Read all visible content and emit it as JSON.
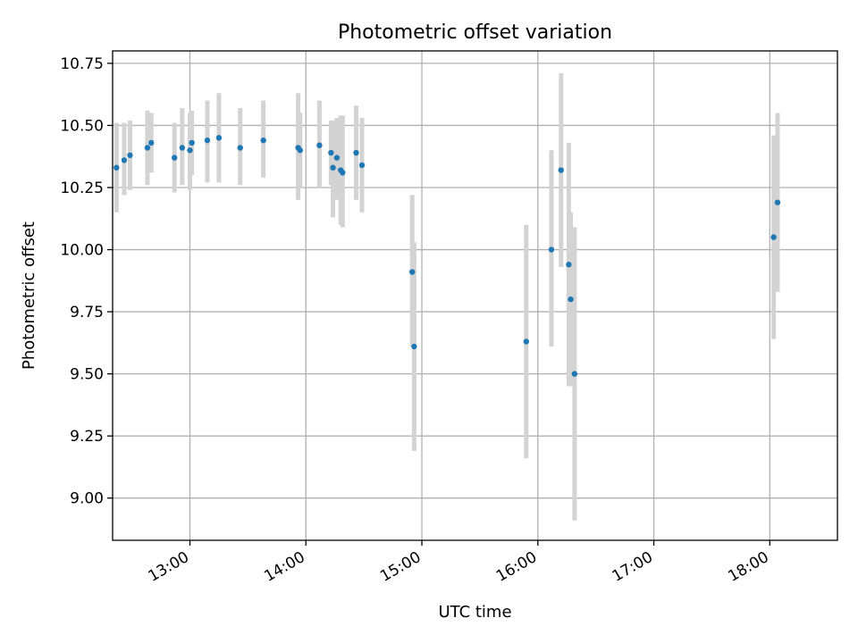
{
  "chart_data": {
    "type": "scatter",
    "title": "Photometric offset variation",
    "xlabel": "UTC time",
    "ylabel": "Photometric offset",
    "xlim": [
      "12:20",
      "18:35"
    ],
    "ylim": [
      8.83,
      10.8
    ],
    "x_ticks": [
      "13:00",
      "14:00",
      "15:00",
      "16:00",
      "17:00",
      "18:00"
    ],
    "y_ticks": [
      "9.00",
      "9.25",
      "9.50",
      "9.75",
      "10.00",
      "10.25",
      "10.50",
      "10.75"
    ],
    "grid": true,
    "colors": {
      "point": "#1f77b4",
      "errorbar": "#d3d3d3",
      "grid": "#b0b0b0"
    },
    "points": [
      {
        "x": "12:22",
        "y": 10.33,
        "ylow": 10.15,
        "yhigh": 10.51
      },
      {
        "x": "12:26",
        "y": 10.36,
        "ylow": 10.22,
        "yhigh": 10.51
      },
      {
        "x": "12:29",
        "y": 10.38,
        "ylow": 10.24,
        "yhigh": 10.52
      },
      {
        "x": "12:38",
        "y": 10.41,
        "ylow": 10.26,
        "yhigh": 10.56
      },
      {
        "x": "12:40",
        "y": 10.43,
        "ylow": 10.31,
        "yhigh": 10.55
      },
      {
        "x": "12:52",
        "y": 10.37,
        "ylow": 10.23,
        "yhigh": 10.51
      },
      {
        "x": "12:56",
        "y": 10.41,
        "ylow": 10.26,
        "yhigh": 10.57
      },
      {
        "x": "13:00",
        "y": 10.4,
        "ylow": 10.24,
        "yhigh": 10.55
      },
      {
        "x": "13:01",
        "y": 10.43,
        "ylow": 10.3,
        "yhigh": 10.56
      },
      {
        "x": "13:09",
        "y": 10.44,
        "ylow": 10.27,
        "yhigh": 10.6
      },
      {
        "x": "13:15",
        "y": 10.45,
        "ylow": 10.27,
        "yhigh": 10.63
      },
      {
        "x": "13:26",
        "y": 10.41,
        "ylow": 10.26,
        "yhigh": 10.57
      },
      {
        "x": "13:38",
        "y": 10.44,
        "ylow": 10.29,
        "yhigh": 10.6
      },
      {
        "x": "13:56",
        "y": 10.41,
        "ylow": 10.2,
        "yhigh": 10.63
      },
      {
        "x": "13:57",
        "y": 10.4,
        "ylow": 10.25,
        "yhigh": 10.55
      },
      {
        "x": "14:07",
        "y": 10.42,
        "ylow": 10.25,
        "yhigh": 10.6
      },
      {
        "x": "14:13",
        "y": 10.39,
        "ylow": 10.26,
        "yhigh": 10.52
      },
      {
        "x": "14:14",
        "y": 10.33,
        "ylow": 10.13,
        "yhigh": 10.52
      },
      {
        "x": "14:16",
        "y": 10.37,
        "ylow": 10.2,
        "yhigh": 10.53
      },
      {
        "x": "14:18",
        "y": 10.32,
        "ylow": 10.1,
        "yhigh": 10.54
      },
      {
        "x": "14:19",
        "y": 10.31,
        "ylow": 10.09,
        "yhigh": 10.54
      },
      {
        "x": "14:26",
        "y": 10.39,
        "ylow": 10.2,
        "yhigh": 10.58
      },
      {
        "x": "14:29",
        "y": 10.34,
        "ylow": 10.15,
        "yhigh": 10.53
      },
      {
        "x": "14:55",
        "y": 9.91,
        "ylow": 9.61,
        "yhigh": 10.22
      },
      {
        "x": "14:56",
        "y": 9.61,
        "ylow": 9.19,
        "yhigh": 10.03
      },
      {
        "x": "15:54",
        "y": 9.63,
        "ylow": 9.16,
        "yhigh": 10.1
      },
      {
        "x": "16:07",
        "y": 10.0,
        "ylow": 9.61,
        "yhigh": 10.4
      },
      {
        "x": "16:12",
        "y": 10.32,
        "ylow": 9.93,
        "yhigh": 10.71
      },
      {
        "x": "16:16",
        "y": 9.94,
        "ylow": 9.45,
        "yhigh": 10.43
      },
      {
        "x": "16:17",
        "y": 9.8,
        "ylow": 9.45,
        "yhigh": 10.15
      },
      {
        "x": "16:19",
        "y": 9.5,
        "ylow": 8.91,
        "yhigh": 10.09
      },
      {
        "x": "18:02",
        "y": 10.05,
        "ylow": 9.64,
        "yhigh": 10.46
      },
      {
        "x": "18:04",
        "y": 10.19,
        "ylow": 9.83,
        "yhigh": 10.55
      }
    ]
  }
}
